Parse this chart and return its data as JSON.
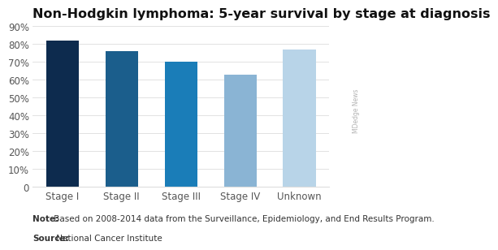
{
  "title": "Non-Hodgkin lymphoma: 5-year survival by stage at diagnosis",
  "categories": [
    "Stage I",
    "Stage II",
    "Stage III",
    "Stage IV",
    "Unknown"
  ],
  "values": [
    82,
    76,
    70,
    63,
    77
  ],
  "bar_colors": [
    "#0d2b4e",
    "#1b5e8c",
    "#1a7db8",
    "#8ab4d4",
    "#b8d4e8"
  ],
  "ylim": [
    0,
    90
  ],
  "yticks": [
    0,
    10,
    20,
    30,
    40,
    50,
    60,
    70,
    80,
    90
  ],
  "ytick_labels": [
    "0",
    "10%",
    "20%",
    "30%",
    "40%",
    "50%",
    "60%",
    "70%",
    "80%",
    "90%"
  ],
  "note_bold": "Note:",
  "note_rest": " Based on 2008-2014 data from the Surveillance, Epidemiology, and End Results Program.",
  "source_bold": "Source:",
  "source_rest": " National Cancer Institute",
  "watermark": "MDedge News",
  "background_color": "#ffffff",
  "title_fontsize": 11.5,
  "tick_fontsize": 8.5,
  "note_fontsize": 7.5,
  "bar_width": 0.55,
  "grid_color": "#dddddd",
  "tick_color": "#555555"
}
